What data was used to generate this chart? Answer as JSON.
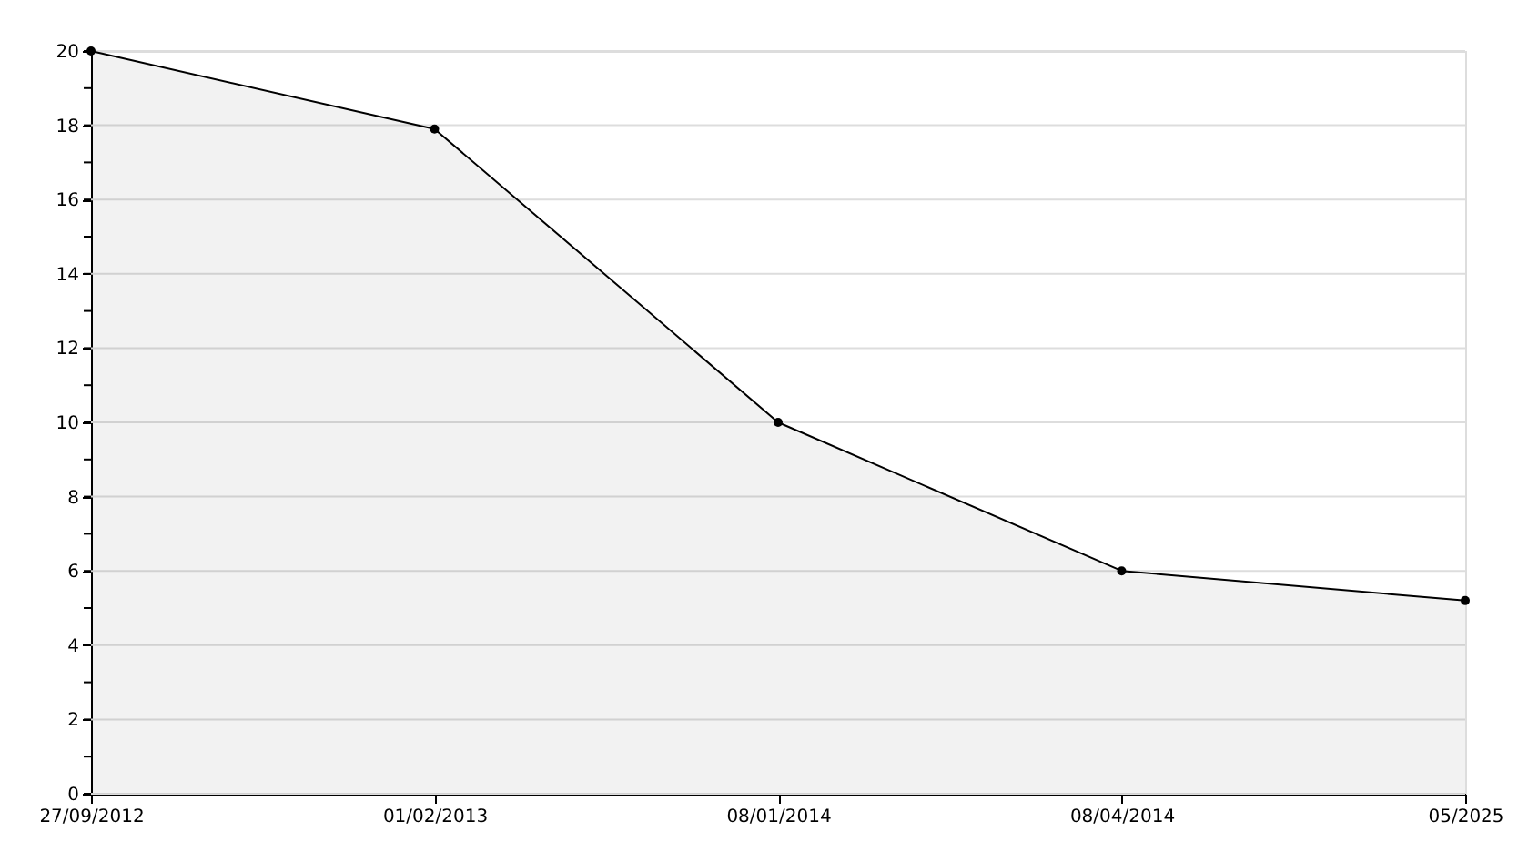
{
  "chart_data": {
    "type": "area",
    "categories": [
      "27/09/2012",
      "01/02/2013",
      "08/01/2014",
      "08/04/2014",
      "05/2025"
    ],
    "series": [
      {
        "color": "#000000",
        "values": [
          20,
          17.9,
          10,
          6,
          5.2
        ]
      }
    ],
    "ylim": [
      0,
      20
    ],
    "yticks": [
      0,
      {
        "value": 1,
        "label": null
      },
      2,
      {
        "value": 3,
        "label": null
      },
      4,
      {
        "value": 5,
        "label": null
      },
      6,
      {
        "value": 7,
        "label": null
      },
      8,
      {
        "value": 9,
        "label": null
      },
      10,
      {
        "value": 11,
        "label": null
      },
      12,
      {
        "value": 13,
        "label": null
      },
      14,
      {
        "value": 15,
        "label": null
      },
      16,
      {
        "value": 17,
        "label": null
      },
      18,
      {
        "value": 19,
        "label": null
      },
      20
    ],
    "grid": "y",
    "marker": "circle",
    "line_style": "solid"
  }
}
